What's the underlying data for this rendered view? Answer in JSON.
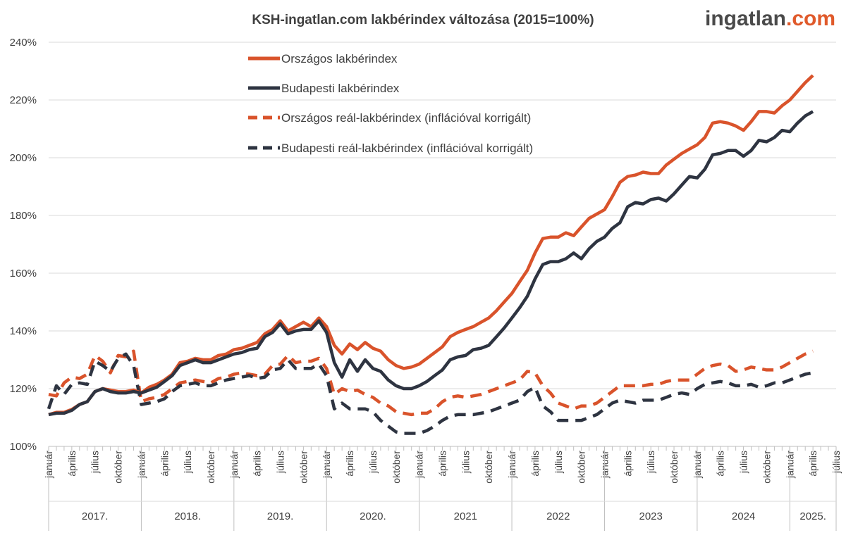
{
  "logo": {
    "part1": "ingatlan",
    "part2": ".com"
  },
  "chart_data": {
    "type": "line",
    "title": "KSH-ingatlan.com lakbérindex változása (2015=100%)",
    "ylim": [
      100,
      240
    ],
    "yticks": [
      "100%",
      "120%",
      "140%",
      "160%",
      "180%",
      "200%",
      "220%",
      "240%"
    ],
    "ytick_values": [
      100,
      120,
      140,
      160,
      180,
      200,
      220,
      240
    ],
    "grid": "horizontal",
    "legend_position": "top-center",
    "x_start": "2017-01",
    "month_labels": [
      "január",
      "április",
      "július",
      "október"
    ],
    "years": [
      {
        "label": "2017.",
        "months": 12
      },
      {
        "label": "2018.",
        "months": 12
      },
      {
        "label": "2019.",
        "months": 12
      },
      {
        "label": "2020.",
        "months": 12
      },
      {
        "label": "2021",
        "months": 12
      },
      {
        "label": "2022",
        "months": 12
      },
      {
        "label": "2023",
        "months": 12
      },
      {
        "label": "2024",
        "months": 12
      },
      {
        "label": "2025.",
        "months": 7
      }
    ],
    "series": [
      {
        "name": "Országos lakbérindex",
        "color": "#D9532B",
        "dashed": false,
        "values": [
          111,
          111.8,
          111.8,
          112.8,
          114.5,
          115.5,
          119,
          120,
          119.5,
          119,
          119,
          119.5,
          118.5,
          120.5,
          121.5,
          123,
          125,
          129,
          129.5,
          130.5,
          130,
          130,
          131.5,
          132,
          133.5,
          134,
          135,
          136,
          139,
          140.5,
          143.5,
          140,
          141.5,
          143,
          141.5,
          144.5,
          141.5,
          135,
          132,
          135.5,
          133.5,
          136,
          134,
          133,
          130,
          128,
          127,
          127.5,
          128.5,
          130.5,
          132.5,
          134.5,
          138,
          139.5,
          140.5,
          141.5,
          143,
          144.5,
          147,
          150,
          153,
          157,
          161,
          167,
          172,
          172.5,
          172.5,
          174,
          173,
          176,
          179,
          180.5,
          182,
          186.5,
          191.5,
          193.5,
          194,
          195,
          194.5,
          194.5,
          197.5,
          199.5,
          201.5,
          203,
          204.5,
          207,
          212,
          212.5,
          212,
          211,
          209.5,
          212.5,
          216,
          216,
          215.5,
          218,
          220,
          223,
          226,
          228.5
        ]
      },
      {
        "name": "Budapesti lakbérindex",
        "color": "#2E3441",
        "dashed": false,
        "values": [
          111,
          111.5,
          111.5,
          112.5,
          114.5,
          115.5,
          119,
          120,
          119,
          118.5,
          118.5,
          119,
          118.5,
          119.5,
          120.5,
          122.5,
          124.5,
          128,
          129,
          130,
          129,
          129,
          130,
          131,
          132,
          132.5,
          133.5,
          134,
          138,
          139.5,
          142.5,
          139,
          140,
          140.5,
          140.5,
          143.5,
          139.5,
          129,
          124,
          130,
          126,
          130,
          127,
          126,
          123,
          121,
          120,
          120,
          121,
          122.5,
          124.5,
          126.5,
          130,
          131,
          131.5,
          133.5,
          134,
          135,
          138,
          141,
          144.5,
          148,
          152,
          158,
          163,
          164,
          164,
          165,
          167,
          165,
          168.5,
          171,
          172.5,
          175.5,
          177.5,
          183,
          184.5,
          184,
          185.5,
          186,
          185,
          187.5,
          190.5,
          193.5,
          193,
          196,
          201,
          201.5,
          202.5,
          202.5,
          200.5,
          202.5,
          206,
          205.5,
          207,
          209.5,
          209,
          212,
          214.5,
          216
        ]
      },
      {
        "name": "Országos reál-lakbérindex (inflációval korrigált)",
        "color": "#D9532B",
        "dashed": true,
        "values": [
          118,
          117.5,
          122,
          124,
          123.5,
          125,
          131.5,
          129.5,
          125.5,
          131.5,
          131,
          133,
          115.5,
          116.5,
          117,
          118,
          120,
          122,
          122.5,
          123,
          122.5,
          122,
          123.5,
          124,
          125,
          125.5,
          125,
          124.5,
          125,
          128,
          128.5,
          131.5,
          129,
          129.5,
          129.5,
          130.5,
          127,
          118,
          120,
          119,
          119.5,
          118,
          117,
          115,
          114,
          112,
          111.5,
          111,
          111.5,
          111.5,
          113,
          115.5,
          117,
          117.5,
          117,
          117.5,
          118,
          119,
          120,
          121,
          122,
          123,
          126,
          125.5,
          121,
          118.5,
          115,
          114,
          113,
          114,
          114,
          115,
          117,
          119,
          121,
          121,
          121,
          121,
          121.5,
          121.5,
          122.5,
          123,
          123,
          123,
          125,
          127,
          128,
          128.5,
          128,
          126,
          126.5,
          127.5,
          127,
          126.5,
          126.5,
          127.5,
          129,
          130.5,
          132,
          133
        ]
      },
      {
        "name": "Budapesti reál-lakbérindex (inflációval korrigált)",
        "color": "#2E3441",
        "dashed": true,
        "values": [
          113,
          121,
          118,
          121.5,
          122,
          121.5,
          129.5,
          128,
          126,
          130.5,
          132,
          128,
          114.5,
          115,
          115.5,
          116.5,
          119,
          121,
          121.5,
          122,
          121,
          121,
          122,
          123,
          123.5,
          124,
          124.5,
          123.5,
          124,
          126.5,
          127,
          130,
          127,
          127,
          127,
          128.5,
          124.5,
          113,
          115,
          113,
          113,
          113,
          112,
          109,
          107,
          105,
          104.5,
          104.5,
          104.5,
          105.5,
          107,
          109,
          110.5,
          111,
          111,
          111,
          111.5,
          112,
          113,
          114,
          115,
          116,
          119,
          120.5,
          114,
          112,
          109,
          109,
          109,
          109,
          110,
          111,
          113,
          115,
          116,
          115.5,
          115,
          116,
          116,
          116,
          117,
          118,
          118.5,
          118,
          120,
          121.5,
          122,
          122.5,
          122,
          121,
          121,
          121.5,
          120.5,
          121,
          122,
          122,
          123,
          124,
          125,
          125.5
        ]
      }
    ]
  }
}
